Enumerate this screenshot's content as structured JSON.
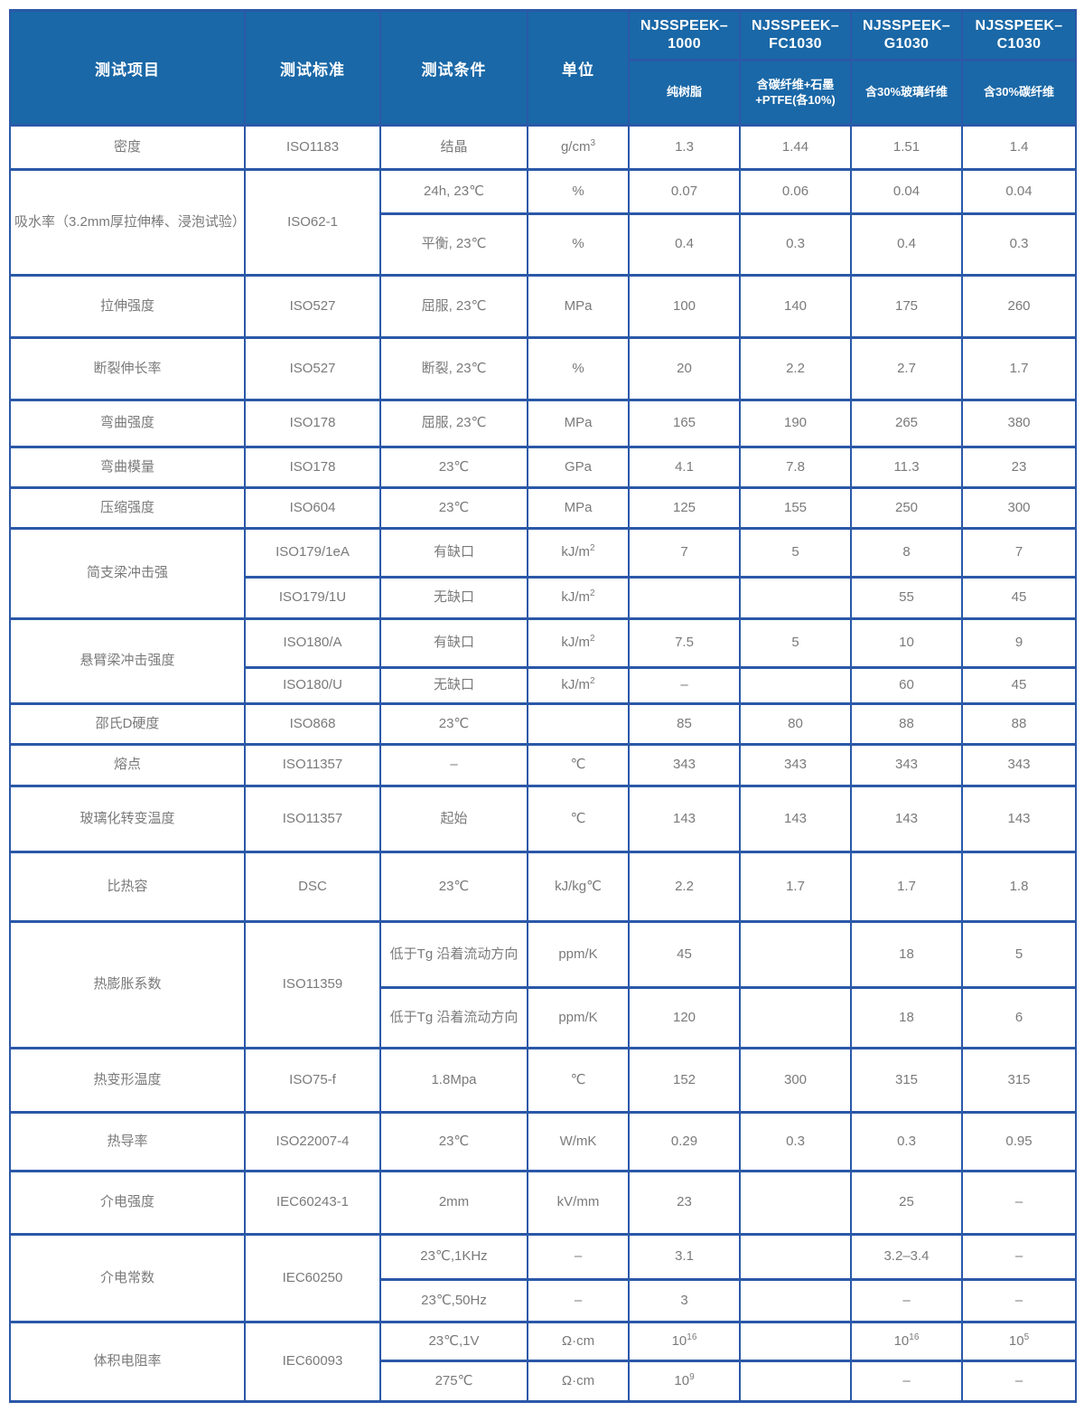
{
  "table": {
    "colors": {
      "header_bg": "#1A68A7",
      "border": "#2B58A8",
      "header_text": "#FFFFFF",
      "body_text": "#7A7A7A"
    },
    "header": {
      "col_headers": [
        "测试项目",
        "测试标准",
        "测试条件",
        "单位"
      ],
      "products": [
        {
          "name": "NJSSPEEK–1000",
          "desc": "纯树脂"
        },
        {
          "name": "NJSSPEEK–FC1030",
          "desc": "含碳纤维+石墨+PTFE(各10%)"
        },
        {
          "name": "NJSSPEEK–G1030",
          "desc": "含30%玻璃纤维"
        },
        {
          "name": "NJSSPEEK–C1030",
          "desc": "含30%碳纤维"
        }
      ]
    },
    "groups": [
      {
        "item": "密度",
        "subrows": [
          {
            "standard": "ISO1183",
            "condition": "结晶",
            "unit": "g/cm^3",
            "values": [
              "1.3",
              "1.44",
              "1.51",
              "1.4"
            ]
          }
        ]
      },
      {
        "item": "吸水率（3.2mm厚拉伸棒、浸泡试验）",
        "standard": "ISO62-1",
        "subrows": [
          {
            "condition": "24h, 23℃",
            "unit": "%",
            "values": [
              "0.07",
              "0.06",
              "0.04",
              "0.04"
            ]
          },
          {
            "condition": "平衡, 23℃",
            "unit": "%",
            "values": [
              "0.4",
              "0.3",
              "0.4",
              "0.3"
            ]
          }
        ]
      },
      {
        "item": "拉伸强度",
        "subrows": [
          {
            "standard": "ISO527",
            "condition": "屈服, 23℃",
            "unit": "MPa",
            "values": [
              "100",
              "140",
              "175",
              "260"
            ]
          }
        ]
      },
      {
        "item": "断裂伸长率",
        "subrows": [
          {
            "standard": "ISO527",
            "condition": "断裂, 23℃",
            "unit": "%",
            "values": [
              "20",
              "2.2",
              "2.7",
              "1.7"
            ]
          }
        ]
      },
      {
        "item": "弯曲强度",
        "subrows": [
          {
            "standard": "ISO178",
            "condition": "屈服, 23℃",
            "unit": "MPa",
            "values": [
              "165",
              "190",
              "265",
              "380"
            ]
          }
        ]
      },
      {
        "item": "弯曲模量",
        "subrows": [
          {
            "standard": "ISO178",
            "condition": "23℃",
            "unit": "GPa",
            "values": [
              "4.1",
              "7.8",
              "11.3",
              "23"
            ]
          }
        ]
      },
      {
        "item": "压缩强度",
        "subrows": [
          {
            "standard": "ISO604",
            "condition": "23℃",
            "unit": "MPa",
            "values": [
              "125",
              "155",
              "250",
              "300"
            ]
          }
        ]
      },
      {
        "item": "简支梁冲击强",
        "subrows": [
          {
            "standard": "ISO179/1eA",
            "condition": "有缺口",
            "unit": "kJ/m^2",
            "values": [
              "7",
              "5",
              "8",
              "7"
            ]
          },
          {
            "standard": "ISO179/1U",
            "condition": "无缺口",
            "unit": "kJ/m^2",
            "values": [
              "",
              "",
              "55",
              "45"
            ]
          }
        ]
      },
      {
        "item": "悬臂梁冲击强度",
        "subrows": [
          {
            "standard": "ISO180/A",
            "condition": "有缺口",
            "unit": "kJ/m^2",
            "values": [
              "7.5",
              "5",
              "10",
              "9"
            ]
          },
          {
            "standard": "ISO180/U",
            "condition": "无缺口",
            "unit": "kJ/m^2",
            "values": [
              "–",
              "",
              "60",
              "45"
            ]
          }
        ]
      },
      {
        "item": "邵氏D硬度",
        "subrows": [
          {
            "standard": "ISO868",
            "condition": "23℃",
            "unit": "",
            "values": [
              "85",
              "80",
              "88",
              "88"
            ]
          }
        ]
      },
      {
        "item": "熔点",
        "subrows": [
          {
            "standard": "ISO11357",
            "condition": "–",
            "unit": "℃",
            "values": [
              "343",
              "343",
              "343",
              "343"
            ]
          }
        ]
      },
      {
        "item": "玻璃化转变温度",
        "subrows": [
          {
            "standard": "ISO11357",
            "condition": "起始",
            "unit": "℃",
            "values": [
              "143",
              "143",
              "143",
              "143"
            ]
          }
        ]
      },
      {
        "item": "比热容",
        "subrows": [
          {
            "standard": "DSC",
            "condition": "23℃",
            "unit": "kJ/kg℃",
            "values": [
              "2.2",
              "1.7",
              "1.7",
              "1.8"
            ]
          }
        ]
      },
      {
        "item": "热膨胀系数",
        "standard": "ISO11359",
        "subrows": [
          {
            "condition": "低于Tg 沿着流动方向",
            "unit": "ppm/K",
            "values": [
              "45",
              "",
              "18",
              "5"
            ]
          },
          {
            "condition": "低于Tg 沿着流动方向",
            "unit": "ppm/K",
            "values": [
              "120",
              "",
              "18",
              "6"
            ]
          }
        ]
      },
      {
        "item": "热变形温度",
        "subrows": [
          {
            "standard": "ISO75-f",
            "condition": "1.8Mpa",
            "unit": "℃",
            "values": [
              "152",
              "300",
              "315",
              "315"
            ]
          }
        ]
      },
      {
        "item": "热导率",
        "subrows": [
          {
            "standard": "ISO22007-4",
            "condition": "23℃",
            "unit": "W/mK",
            "values": [
              "0.29",
              "0.3",
              "0.3",
              "0.95"
            ]
          }
        ]
      },
      {
        "item": "介电强度",
        "subrows": [
          {
            "standard": "IEC60243-1",
            "condition": "2mm",
            "unit": "kV/mm",
            "values": [
              "23",
              "",
              "25",
              "–"
            ]
          }
        ]
      },
      {
        "item": "介电常数",
        "standard": "IEC60250",
        "subrows": [
          {
            "condition": "23℃,1KHz",
            "unit": "–",
            "values": [
              "3.1",
              "",
              "3.2–3.4",
              "–"
            ]
          },
          {
            "condition": "23℃,50Hz",
            "unit": "–",
            "values": [
              "3",
              "",
              "–",
              "–"
            ]
          }
        ]
      },
      {
        "item": "体积电阻率",
        "standard": "IEC60093",
        "subrows": [
          {
            "condition": "23℃,1V",
            "unit": "Ω·cm",
            "values": [
              "10^16",
              "",
              "10^16",
              "10^5"
            ]
          },
          {
            "condition": "275℃",
            "unit": "Ω·cm",
            "values": [
              "10^9",
              "",
              "–",
              "–"
            ]
          }
        ]
      }
    ]
  }
}
